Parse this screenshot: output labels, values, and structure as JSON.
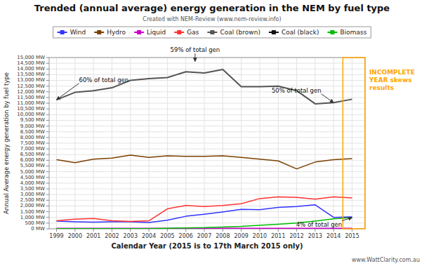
{
  "chart_data": {
    "type": "line",
    "title": "Trended (annual average) energy generation in the NEM by fuel type",
    "subtitle": "Created with NEM-Review (www.nem-review.info)",
    "xlabel": "Calendar Year (2015 is to 17th March 2015 only)",
    "ylabel": "Annual Average energy generation by fuel type",
    "x": [
      1999,
      2000,
      2001,
      2002,
      2003,
      2004,
      2005,
      2006,
      2007,
      2008,
      2009,
      2010,
      2011,
      2012,
      2013,
      2014,
      2015
    ],
    "series": [
      {
        "name": "Wind",
        "color": "#3333FF",
        "values": [
          680,
          620,
          580,
          620,
          620,
          550,
          750,
          1100,
          1280,
          1480,
          1700,
          1680,
          1880,
          1950,
          2100,
          1000,
          1050
        ]
      },
      {
        "name": "Hydro",
        "color": "#7B3F00",
        "values": [
          6050,
          5800,
          6100,
          6200,
          6450,
          6250,
          6400,
          6350,
          6350,
          6400,
          6250,
          6100,
          5950,
          5250,
          5850,
          6050,
          6150
        ]
      },
      {
        "name": "Liquid",
        "color": "#CC00CC",
        "values": [
          50,
          50,
          50,
          50,
          50,
          50,
          50,
          50,
          50,
          50,
          50,
          50,
          50,
          50,
          50,
          50,
          50
        ]
      },
      {
        "name": "Gas",
        "color": "#FF3333",
        "values": [
          700,
          850,
          900,
          700,
          650,
          700,
          1750,
          2050,
          1950,
          2050,
          2200,
          2650,
          2800,
          2750,
          2600,
          2800,
          2700
        ]
      },
      {
        "name": "Coal (brown)",
        "color": "#555555",
        "values": [
          11300,
          11950,
          12100,
          12350,
          13000,
          13150,
          13250,
          13750,
          13650,
          13950,
          12450,
          12450,
          12500,
          12100,
          10950,
          11050,
          11350
        ]
      },
      {
        "name": "Coal (black)",
        "color": "#111111",
        "values": [
          null,
          null,
          null,
          null,
          null,
          null,
          null,
          null,
          null,
          null,
          null,
          null,
          null,
          null,
          null,
          null,
          null
        ]
      },
      {
        "name": "Biomass",
        "color": "#00BB00",
        "values": [
          10,
          10,
          10,
          10,
          10,
          10,
          50,
          80,
          100,
          160,
          210,
          300,
          400,
          500,
          680,
          880,
          980
        ]
      }
    ],
    "xlim": [
      1998.6,
      2015.7
    ],
    "xticks": [
      1999,
      2000,
      2001,
      2002,
      2003,
      2004,
      2005,
      2006,
      2007,
      2008,
      2009,
      2010,
      2011,
      2012,
      2013,
      2014,
      2015
    ],
    "ylim": [
      0,
      15000
    ],
    "yticks": [
      {
        "value": 0,
        "label": "0 MW"
      },
      {
        "value": 500,
        "label": "500 MW"
      },
      {
        "value": 1000,
        "label": "1,000 MW"
      },
      {
        "value": 1500,
        "label": "1,500 MW"
      },
      {
        "value": 2000,
        "label": "2,000 MW"
      },
      {
        "value": 2500,
        "label": "2,500 MW"
      },
      {
        "value": 3000,
        "label": "3,000 MW"
      },
      {
        "value": 3500,
        "label": "3,500 MW"
      },
      {
        "value": 4000,
        "label": "4,000 MW"
      },
      {
        "value": 4500,
        "label": "4,500 MW"
      },
      {
        "value": 5000,
        "label": "5,000 MW"
      },
      {
        "value": 5500,
        "label": "5,500 MW"
      },
      {
        "value": 6000,
        "label": "6,000 MW"
      },
      {
        "value": 6500,
        "label": "6,500 MW"
      },
      {
        "value": 7000,
        "label": "7,000 MW"
      },
      {
        "value": 7500,
        "label": "7,500 MW"
      },
      {
        "value": 8000,
        "label": "8,000 MW"
      },
      {
        "value": 8500,
        "label": "8,500 MW"
      },
      {
        "value": 9000,
        "label": "9,000 MW"
      },
      {
        "value": 9500,
        "label": "9,500 MW"
      },
      {
        "value": 10000,
        "label": "10,000 MW"
      },
      {
        "value": 10500,
        "label": "10,500 MW"
      },
      {
        "value": 11000,
        "label": "11,000 MW"
      },
      {
        "value": 11500,
        "label": "11,500 MW"
      },
      {
        "value": 12000,
        "label": "12,000 MW"
      },
      {
        "value": 12500,
        "label": "12,500 MW"
      },
      {
        "value": 13000,
        "label": "13,000 MW"
      },
      {
        "value": 13500,
        "label": "13,500 MW"
      },
      {
        "value": 14000,
        "label": "14,000 MW"
      },
      {
        "value": 14500,
        "label": "14,500 MW"
      },
      {
        "value": 15000,
        "label": "15,000 MW"
      }
    ],
    "grid": true,
    "legend": "top",
    "annotations": [
      {
        "text": "60% of total gen",
        "x": 1999,
        "y": 11300
      },
      {
        "text": "59% of total gen",
        "x": 2006.5,
        "y": 14650
      },
      {
        "text": "50% of total gen",
        "x": 2014,
        "y": 11050
      },
      {
        "text": "4% of total gen",
        "x": 2015,
        "y": 980
      },
      {
        "text": "INCOMPLETE\nYEAR skews\nresults"
      },
      {
        "text": "www.WattClarity.com.au"
      }
    ]
  }
}
